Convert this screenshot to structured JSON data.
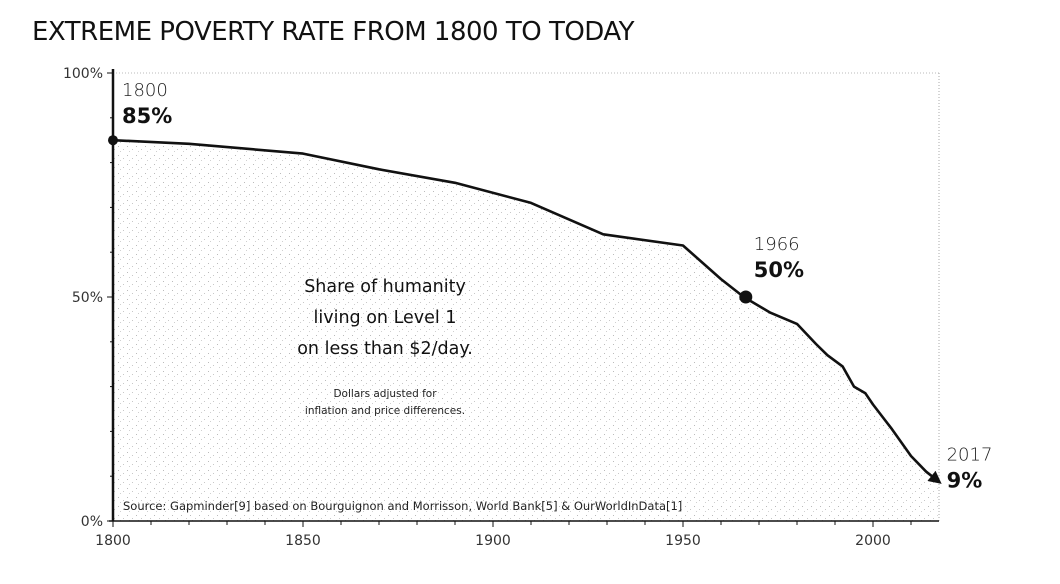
{
  "chart_data": {
    "type": "area",
    "title": "EXTREME POVERTY RATE FROM 1800 TO TODAY",
    "xlabel": "",
    "ylabel": "",
    "xlim": [
      1800,
      2017
    ],
    "ylim": [
      0,
      100
    ],
    "x_ticks": [
      1800,
      1850,
      1900,
      1950,
      2000
    ],
    "x_tick_labels": [
      "1800",
      "1850",
      "1900",
      "1950",
      "2000"
    ],
    "x_minor_step": 10,
    "y_ticks": [
      0,
      50,
      100
    ],
    "y_tick_labels": [
      "0%",
      "50%",
      "100%"
    ],
    "y_minor_step": 10,
    "grid": false,
    "series": [
      {
        "name": "Share of humanity living on Level 1",
        "x": [
          1800,
          1820,
          1850,
          1870,
          1890,
          1910,
          1929,
          1950,
          1960,
          1966,
          1973,
          1980,
          1985,
          1988,
          1992,
          1995,
          1998,
          2000,
          2005,
          2010,
          2014,
          2017
        ],
        "values": [
          85,
          84.2,
          82,
          78.5,
          75.5,
          71,
          64,
          61.5,
          54,
          50,
          46.5,
          44,
          39.5,
          37,
          34.5,
          30,
          28.5,
          26,
          20.5,
          14.5,
          11,
          9
        ]
      }
    ],
    "annotations": [
      {
        "year": "1800",
        "value": "85%",
        "x": 1800,
        "y": 85,
        "marker": "dot"
      },
      {
        "year": "1966",
        "value": "50%",
        "x": 1966,
        "y": 50,
        "marker": "dot"
      },
      {
        "year": "2017",
        "value": "9%",
        "x": 2017,
        "y": 9,
        "marker": "arrow"
      }
    ],
    "note_lines": [
      "Share of humanity",
      "living on Level 1",
      "on less than $2/day."
    ],
    "subnote_lines": [
      "Dollars adjusted for",
      "inflation and price differences."
    ],
    "source": "Source: Gapminder[9] based on Bourguignon and Morrisson, World Bank[5] & OurWorldInData[1]"
  }
}
